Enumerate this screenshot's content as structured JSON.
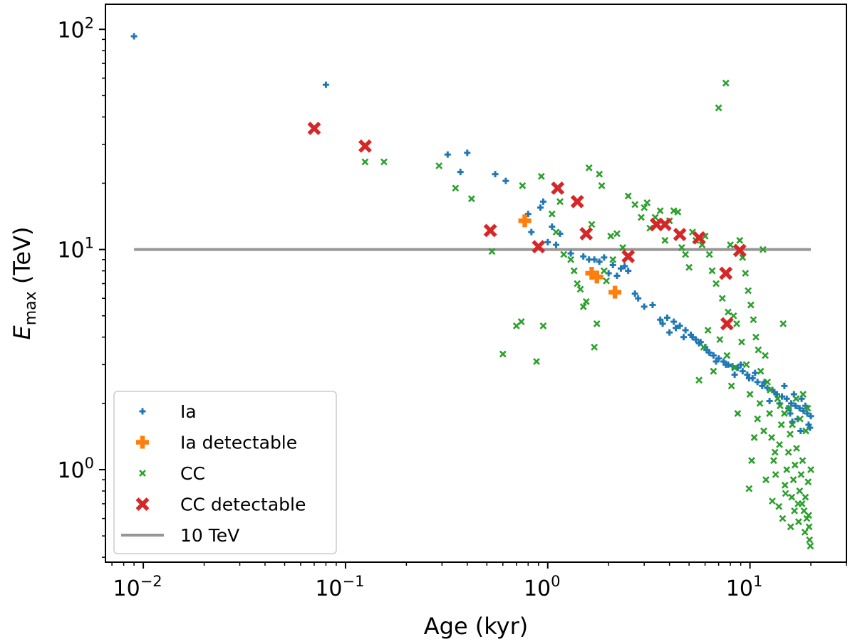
{
  "chart_data": {
    "type": "scatter",
    "xscale": "log",
    "yscale": "log",
    "xlabel": "Age (kyr)",
    "ylabel": {
      "main": "E",
      "sub": "max",
      "unit": "(TeV)"
    },
    "xlim": [
      0.0065,
      30
    ],
    "ylim": [
      0.38,
      130
    ],
    "x_ticks": [
      {
        "base": "10",
        "exp": "−2",
        "value": 0.01
      },
      {
        "base": "10",
        "exp": "−1",
        "value": 0.1
      },
      {
        "base": "10",
        "exp": "0",
        "value": 1
      },
      {
        "base": "10",
        "exp": "1",
        "value": 10
      }
    ],
    "y_ticks": [
      {
        "base": "10",
        "exp": "0",
        "value": 1
      },
      {
        "base": "10",
        "exp": "1",
        "value": 10
      },
      {
        "base": "10",
        "exp": "2",
        "value": 100
      }
    ],
    "reference_line": {
      "name": "10 TeV",
      "y": 10,
      "x_range": [
        0.009,
        20
      ],
      "color": "#969696"
    },
    "legend": {
      "placement": "lower-left",
      "entries": [
        {
          "label": "Ia",
          "series": "Ia"
        },
        {
          "label": "Ia detectable",
          "series": "Ia detectable"
        },
        {
          "label": "CC",
          "series": "CC"
        },
        {
          "label": "CC detectable",
          "series": "CC detectable"
        },
        {
          "label": "10 TeV",
          "series": "10 TeV"
        }
      ]
    },
    "series": [
      {
        "name": "Ia",
        "marker": "plus",
        "color": "#1f77b4",
        "points": [
          [
            0.009,
            93
          ],
          [
            0.08,
            56
          ],
          [
            0.32,
            27
          ],
          [
            0.37,
            22.5
          ],
          [
            0.4,
            27.5
          ],
          [
            0.55,
            22
          ],
          [
            0.62,
            20.5
          ],
          [
            0.8,
            14.5
          ],
          [
            0.83,
            12
          ],
          [
            0.92,
            15.5
          ],
          [
            0.95,
            16.5
          ],
          [
            1.0,
            10.8
          ],
          [
            1.05,
            12.7
          ],
          [
            1.1,
            10.5
          ],
          [
            1.15,
            11.8
          ],
          [
            1.3,
            9.6
          ],
          [
            1.5,
            9.3
          ],
          [
            1.7,
            9.0
          ],
          [
            1.9,
            9.2
          ],
          [
            2.1,
            8.5
          ],
          [
            2.3,
            8.2
          ],
          [
            2.5,
            8.0
          ],
          [
            2.7,
            6.3
          ],
          [
            3.0,
            5.5
          ],
          [
            3.3,
            5.6
          ],
          [
            3.6,
            4.8
          ],
          [
            3.9,
            4.9
          ],
          [
            4.2,
            4.7
          ],
          [
            4.5,
            4.5
          ],
          [
            4.8,
            4.3
          ],
          [
            5.1,
            4.1
          ],
          [
            5.4,
            3.9
          ],
          [
            5.7,
            3.8
          ],
          [
            6.0,
            3.6
          ],
          [
            6.3,
            3.4
          ],
          [
            6.6,
            3.3
          ],
          [
            7.0,
            3.2
          ],
          [
            7.4,
            3.1
          ],
          [
            7.8,
            3.0
          ],
          [
            8.2,
            2.95
          ],
          [
            8.7,
            2.9
          ],
          [
            9.2,
            2.8
          ],
          [
            9.7,
            2.7
          ],
          [
            10.3,
            2.6
          ],
          [
            10.9,
            2.5
          ],
          [
            11.5,
            2.4
          ],
          [
            12.2,
            2.35
          ],
          [
            12.9,
            2.3
          ],
          [
            13.6,
            2.2
          ],
          [
            14.4,
            2.15
          ],
          [
            15.2,
            2.1
          ],
          [
            16.0,
            2.0
          ],
          [
            16.8,
            1.95
          ],
          [
            17.6,
            1.9
          ],
          [
            18.4,
            1.85
          ],
          [
            19.2,
            1.8
          ],
          [
            20.0,
            1.75
          ],
          [
            19.5,
            1.6
          ],
          [
            18.0,
            2.1
          ],
          [
            17.2,
            1.7
          ],
          [
            16.5,
            2.2
          ],
          [
            15.8,
            1.8
          ],
          [
            14.8,
            2.4
          ],
          [
            13.2,
            2.25
          ],
          [
            12.5,
            2.05
          ],
          [
            11.8,
            2.5
          ],
          [
            10.6,
            2.75
          ],
          [
            9.9,
            2.6
          ],
          [
            9.0,
            3.0
          ],
          [
            8.4,
            2.7
          ],
          [
            7.6,
            3.0
          ],
          [
            6.8,
            3.1
          ],
          [
            6.1,
            3.5
          ],
          [
            5.6,
            3.75
          ],
          [
            5.2,
            4.0
          ],
          [
            4.7,
            4.0
          ],
          [
            4.3,
            4.4
          ],
          [
            4.0,
            4.2
          ],
          [
            3.7,
            4.6
          ],
          [
            2.8,
            6.0
          ],
          [
            2.4,
            8.4
          ],
          [
            2.2,
            7.6
          ],
          [
            2.0,
            7.8
          ],
          [
            1.8,
            8.8
          ],
          [
            1.6,
            9.0
          ],
          [
            17.8,
            1.5
          ],
          [
            18.8,
            1.95
          ],
          [
            19.8,
            1.55
          ],
          [
            16.2,
            1.65
          ],
          [
            15.5,
            1.9
          ],
          [
            14.0,
            2.0
          ]
        ]
      },
      {
        "name": "Ia detectable",
        "marker": "plus-bold",
        "color": "#ff7f0e",
        "points": [
          [
            0.77,
            13.5
          ],
          [
            1.65,
            7.8
          ],
          [
            1.75,
            7.5
          ],
          [
            2.15,
            6.4
          ]
        ]
      },
      {
        "name": "CC",
        "marker": "x",
        "color": "#2ca02c",
        "points": [
          [
            0.125,
            25
          ],
          [
            0.155,
            25
          ],
          [
            0.29,
            24
          ],
          [
            0.35,
            19
          ],
          [
            0.42,
            17
          ],
          [
            0.53,
            9.8
          ],
          [
            0.6,
            3.35
          ],
          [
            0.7,
            4.5
          ],
          [
            0.74,
            4.7
          ],
          [
            0.75,
            19.5
          ],
          [
            0.88,
            3.1
          ],
          [
            0.93,
            21.5
          ],
          [
            0.95,
            4.5
          ],
          [
            1.05,
            14.5
          ],
          [
            1.1,
            12.0
          ],
          [
            1.15,
            16.5
          ],
          [
            1.2,
            9.5
          ],
          [
            1.3,
            9.0
          ],
          [
            1.35,
            8.0
          ],
          [
            1.4,
            7.0
          ],
          [
            1.45,
            6.6
          ],
          [
            1.5,
            5.5
          ],
          [
            1.55,
            5.8
          ],
          [
            1.6,
            23.5
          ],
          [
            1.65,
            13.0
          ],
          [
            1.7,
            3.6
          ],
          [
            1.75,
            4.6
          ],
          [
            1.8,
            22.0
          ],
          [
            1.85,
            19.5
          ],
          [
            1.9,
            8.0
          ],
          [
            1.95,
            7.2
          ],
          [
            2.05,
            11.5
          ],
          [
            2.1,
            9.0
          ],
          [
            2.2,
            11.8
          ],
          [
            2.35,
            10.2
          ],
          [
            2.5,
            17.5
          ],
          [
            2.7,
            16.0
          ],
          [
            2.9,
            14.0
          ],
          [
            3.0,
            15.5
          ],
          [
            3.1,
            16.3
          ],
          [
            3.2,
            12.5
          ],
          [
            3.4,
            14.0
          ],
          [
            3.6,
            15.0
          ],
          [
            3.8,
            11.0
          ],
          [
            4.0,
            13.5
          ],
          [
            4.2,
            15.0
          ],
          [
            4.4,
            14.8
          ],
          [
            4.6,
            10.2
          ],
          [
            4.8,
            9.5
          ],
          [
            5.0,
            8.3
          ],
          [
            5.2,
            12.0
          ],
          [
            5.4,
            11.0
          ],
          [
            5.6,
            2.55
          ],
          [
            5.8,
            10.5
          ],
          [
            6.0,
            11.5
          ],
          [
            6.3,
            9.5
          ],
          [
            6.5,
            8.0
          ],
          [
            6.8,
            7.0
          ],
          [
            7.0,
            44.0
          ],
          [
            7.3,
            6.0
          ],
          [
            7.6,
            57.0
          ],
          [
            7.8,
            5.2
          ],
          [
            8.0,
            10.5
          ],
          [
            8.3,
            5.0
          ],
          [
            8.6,
            4.6
          ],
          [
            8.9,
            11.0
          ],
          [
            9.2,
            9.2
          ],
          [
            9.5,
            7.8
          ],
          [
            9.8,
            6.5
          ],
          [
            10.1,
            5.6
          ],
          [
            10.4,
            4.8
          ],
          [
            10.7,
            4.0
          ],
          [
            11.0,
            3.5
          ],
          [
            11.3,
            2.8
          ],
          [
            11.6,
            10.0
          ],
          [
            11.9,
            3.3
          ],
          [
            12.2,
            2.5
          ],
          [
            12.5,
            1.8
          ],
          [
            12.8,
            1.4
          ],
          [
            13.1,
            1.1
          ],
          [
            13.4,
            0.95
          ],
          [
            13.7,
            2.1
          ],
          [
            14.0,
            1.3
          ],
          [
            14.3,
            1.6
          ],
          [
            14.6,
            4.6
          ],
          [
            14.9,
            0.85
          ],
          [
            15.2,
            1.0
          ],
          [
            15.5,
            1.2
          ],
          [
            15.8,
            1.45
          ],
          [
            16.1,
            0.75
          ],
          [
            16.4,
            0.9
          ],
          [
            16.7,
            1.05
          ],
          [
            17.0,
            1.25
          ],
          [
            17.3,
            0.7
          ],
          [
            17.6,
            0.8
          ],
          [
            17.9,
            0.95
          ],
          [
            18.2,
            1.1
          ],
          [
            18.5,
            0.65
          ],
          [
            18.8,
            0.75
          ],
          [
            19.1,
            0.6
          ],
          [
            19.4,
            0.88
          ],
          [
            19.7,
            0.48
          ],
          [
            20.0,
            1.0
          ],
          [
            19.9,
            0.45
          ],
          [
            19.6,
            0.55
          ],
          [
            19.3,
            1.9
          ],
          [
            18.9,
            1.5
          ],
          [
            18.3,
            2.2
          ],
          [
            17.7,
            1.7
          ],
          [
            16.9,
            2.1
          ],
          [
            16.2,
            1.6
          ],
          [
            15.6,
            1.9
          ],
          [
            14.8,
            1.8
          ],
          [
            14.1,
            1.95
          ],
          [
            13.3,
            1.2
          ],
          [
            12.6,
            2.3
          ],
          [
            11.7,
            1.5
          ],
          [
            10.9,
            1.7
          ],
          [
            10.0,
            2.2
          ],
          [
            9.6,
            3.0
          ],
          [
            9.1,
            3.8
          ],
          [
            8.7,
            1.8
          ],
          [
            8.4,
            2.9
          ],
          [
            8.1,
            2.4
          ],
          [
            7.7,
            3.3
          ],
          [
            7.1,
            3.9
          ],
          [
            6.6,
            2.8
          ],
          [
            6.2,
            4.3
          ],
          [
            5.9,
            3.6
          ],
          [
            11.2,
            2.0
          ],
          [
            10.5,
            1.4
          ],
          [
            10.2,
            1.1
          ],
          [
            9.9,
            0.82
          ],
          [
            12.0,
            0.9
          ],
          [
            12.9,
            0.72
          ],
          [
            13.9,
            0.68
          ],
          [
            14.5,
            0.6
          ],
          [
            15.0,
            0.78
          ],
          [
            15.9,
            0.55
          ],
          [
            16.6,
            0.65
          ],
          [
            17.4,
            0.58
          ],
          [
            18.1,
            0.7
          ],
          [
            18.7,
            0.52
          ],
          [
            19.5,
            0.62
          ]
        ]
      },
      {
        "name": "CC detectable",
        "marker": "x-bold",
        "color": "#d62728",
        "points": [
          [
            0.07,
            35.5
          ],
          [
            0.125,
            29.5
          ],
          [
            0.52,
            12.2
          ],
          [
            0.9,
            10.3
          ],
          [
            1.12,
            19.0
          ],
          [
            1.4,
            16.5
          ],
          [
            1.55,
            11.8
          ],
          [
            2.5,
            9.3
          ],
          [
            3.45,
            13.0
          ],
          [
            3.8,
            13.0
          ],
          [
            4.5,
            11.7
          ],
          [
            5.6,
            11.3
          ],
          [
            7.6,
            7.8
          ],
          [
            7.7,
            4.6
          ],
          [
            8.9,
            9.9
          ]
        ]
      }
    ]
  }
}
